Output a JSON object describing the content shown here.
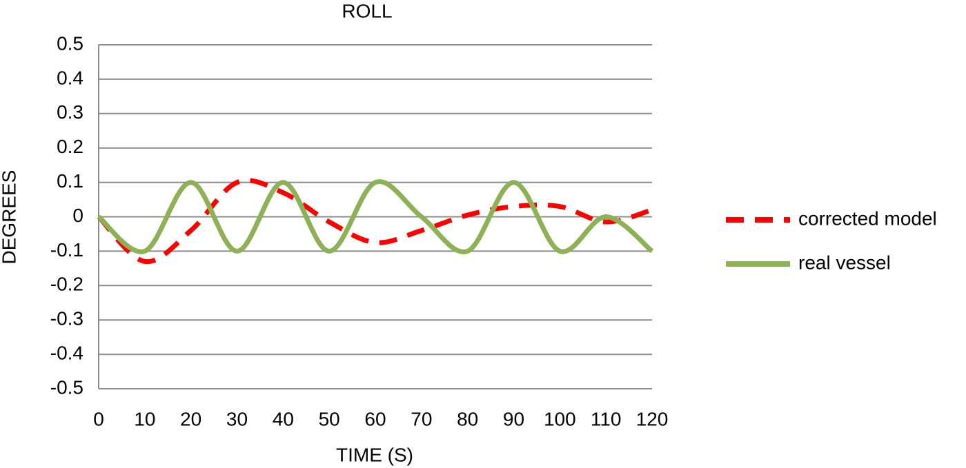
{
  "chart_data": {
    "type": "line",
    "title": "ROLL",
    "x_label": "TIME (S)",
    "y_label": "DEGREES",
    "x": [
      0,
      10,
      20,
      30,
      40,
      50,
      60,
      70,
      80,
      90,
      100,
      110,
      120
    ],
    "series": [
      {
        "name": "corrected model",
        "color": "#ff0000",
        "dashed": true,
        "values": [
          0,
          -0.13,
          -0.04,
          0.1,
          0.07,
          -0.015,
          -0.075,
          -0.04,
          0.005,
          0.03,
          0.03,
          -0.015,
          0.02
        ]
      },
      {
        "name": "real vessel",
        "color": "#8db255",
        "dashed": false,
        "values": [
          0,
          -0.1,
          0.1,
          -0.1,
          0.1,
          -0.1,
          0.1,
          0,
          -0.1,
          0.1,
          -0.1,
          0,
          -0.1
        ]
      }
    ],
    "xlim": [
      0,
      120
    ],
    "xticks": [
      0,
      10,
      20,
      30,
      40,
      50,
      60,
      70,
      80,
      90,
      100,
      110,
      120
    ],
    "ylim": [
      -0.5,
      0.5
    ],
    "yticks": [
      -0.5,
      -0.4,
      -0.3,
      -0.2,
      -0.1,
      0,
      0.1,
      0.2,
      0.3,
      0.4,
      0.5
    ],
    "grid": true,
    "smooth": true,
    "legend": "right"
  }
}
